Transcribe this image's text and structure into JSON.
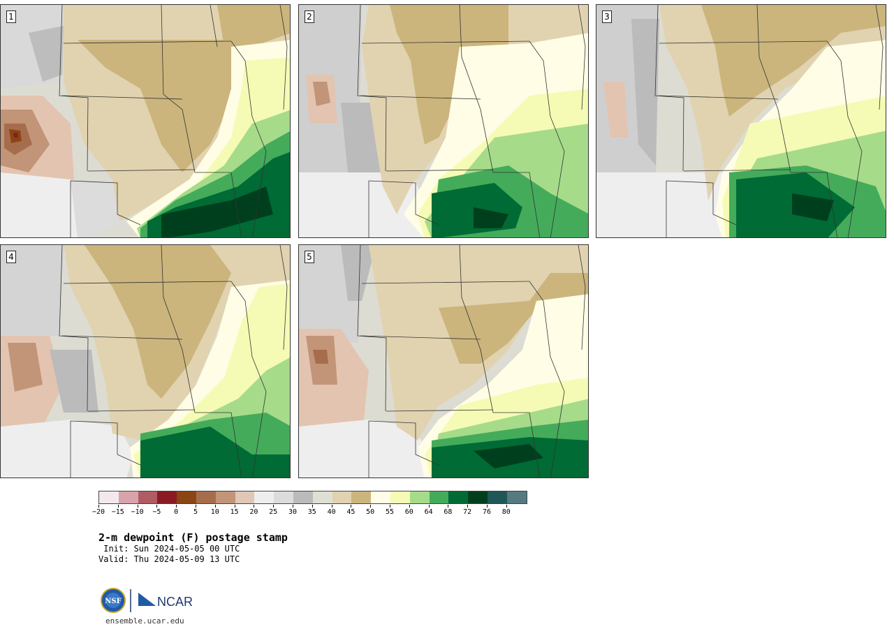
{
  "title": "2-m dewpoint (F) postage stamp",
  "init": " Init: Sun 2024-05-05 00 UTC",
  "valid": "Valid: Thu 2024-05-09 13 UTC",
  "credit": "ensemble.ucar.edu",
  "logo": {
    "left_text": "NSF",
    "right_text": "NCAR"
  },
  "panels": [
    {
      "label": "1"
    },
    {
      "label": "2"
    },
    {
      "label": "3"
    },
    {
      "label": "4"
    },
    {
      "label": "5"
    }
  ],
  "colorbar": {
    "colors": [
      "#f3e9ec",
      "#d9a3ab",
      "#b05c65",
      "#8a1b25",
      "#8b4513",
      "#a66d4c",
      "#c29478",
      "#e1c7b6",
      "#eeeeee",
      "#dcdcdc",
      "#bbbbbb",
      "#e0dfd4",
      "#e1d3b0",
      "#cbb57d",
      "#fffde6",
      "#f5fbb4",
      "#a6db8a",
      "#44ab5b",
      "#006b34",
      "#003f1e",
      "#1f5656",
      "#557a82"
    ],
    "ticks": [
      "−20",
      "−15",
      "−10",
      "−5",
      "0",
      "5",
      "10",
      "15",
      "20",
      "25",
      "30",
      "35",
      "40",
      "45",
      "50",
      "55",
      "60",
      "64",
      "68",
      "72",
      "76",
      "80"
    ]
  }
}
